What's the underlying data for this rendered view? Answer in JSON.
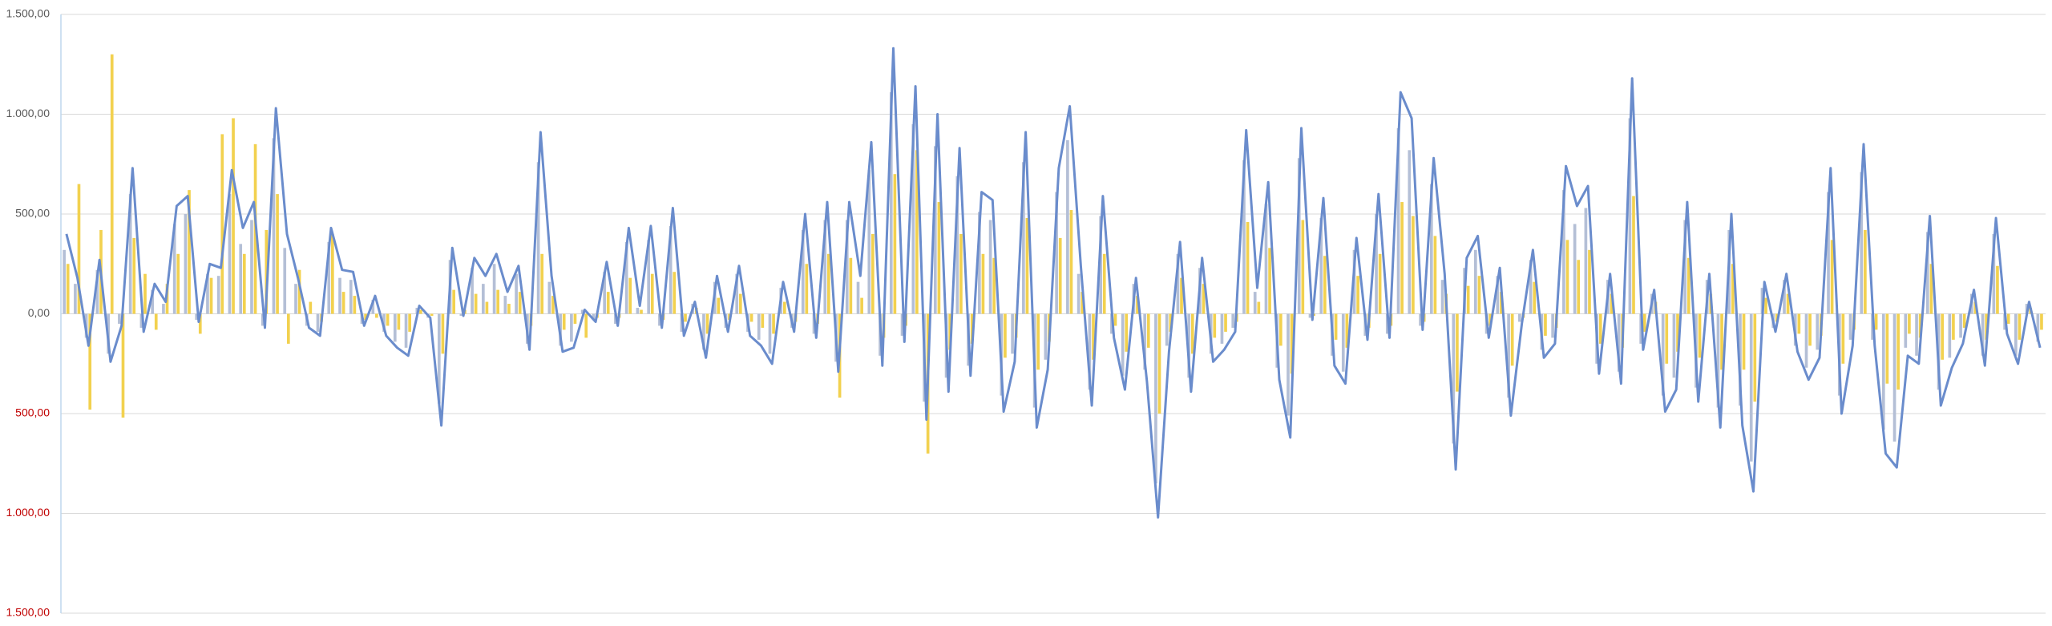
{
  "chart_data": {
    "type": "bar-line",
    "categories": [
      null,
      null,
      null,
      null,
      null,
      null,
      null,
      null,
      null,
      null,
      null,
      null,
      null,
      null,
      null,
      null,
      null,
      null,
      null,
      null,
      null,
      null,
      null,
      null,
      null,
      null,
      null,
      null,
      null,
      null,
      null,
      null,
      null,
      null,
      null,
      null,
      null,
      null,
      null,
      null,
      null,
      null,
      null,
      null,
      null,
      null,
      null,
      null,
      null,
      null,
      null,
      null,
      null,
      null,
      null,
      null,
      null,
      null,
      null,
      null,
      null,
      null,
      null,
      null,
      null,
      null,
      null,
      null,
      null,
      null,
      null,
      null,
      null,
      null,
      null,
      null,
      null,
      null,
      null,
      null,
      null,
      null,
      null,
      null,
      null,
      null,
      null,
      null,
      null,
      null,
      null,
      null,
      null,
      null,
      null,
      null,
      null,
      null,
      null,
      null,
      null,
      null,
      null,
      null,
      null,
      null,
      null,
      null,
      null,
      null,
      null,
      null,
      null,
      null,
      null,
      null,
      null,
      null,
      null,
      null,
      null,
      null,
      null,
      null,
      null,
      null,
      null,
      null,
      null,
      null,
      null,
      null,
      null,
      null,
      null,
      null,
      null,
      null,
      null,
      null,
      null,
      null,
      null,
      null,
      null,
      null,
      null,
      null,
      null,
      null,
      null,
      null,
      null,
      null,
      null,
      null,
      null,
      null,
      null,
      null,
      null,
      null,
      null,
      null,
      null,
      null,
      null,
      null,
      null,
      null,
      null,
      null,
      null,
      null,
      null,
      null,
      null,
      null,
      null,
      null
    ],
    "series": [
      {
        "kind": "bar",
        "color": "#b4bfd6",
        "values": [
          320,
          150,
          -120,
          220,
          -200,
          -50,
          600,
          -70,
          120,
          50,
          450,
          500,
          -30,
          200,
          190,
          600,
          350,
          470,
          -60,
          880,
          330,
          150,
          -60,
          -90,
          360,
          180,
          170,
          -50,
          70,
          -90,
          -140,
          -170,
          30,
          -20,
          -450,
          270,
          -10,
          230,
          150,
          250,
          90,
          200,
          -150,
          760,
          160,
          -160,
          -140,
          20,
          -30,
          210,
          -50,
          360,
          30,
          370,
          -60,
          440,
          -90,
          50,
          -180,
          160,
          -70,
          200,
          -90,
          -130,
          -200,
          130,
          -70,
          420,
          -100,
          470,
          -240,
          470,
          160,
          720,
          -210,
          1110,
          -110,
          950,
          -440,
          840,
          -320,
          690,
          -260,
          510,
          470,
          -410,
          -200,
          760,
          -470,
          -230,
          610,
          870,
          200,
          -380,
          490,
          -100,
          -310,
          150,
          -280,
          -850,
          -160,
          300,
          -320,
          230,
          -200,
          -150,
          -70,
          770,
          110,
          550,
          -270,
          -510,
          780,
          -20,
          480,
          -210,
          -290,
          320,
          -110,
          500,
          -100,
          930,
          820,
          -60,
          650,
          170,
          -650,
          230,
          320,
          -100,
          190,
          -420,
          -40,
          270,
          -180,
          -120,
          620,
          450,
          530,
          -250,
          170,
          -290,
          980,
          -150,
          100,
          -410,
          -320,
          470,
          -370,
          170,
          -470,
          420,
          -460,
          -740,
          130,
          -70,
          170,
          -160,
          -270,
          -180,
          610,
          -410,
          -130,
          710,
          -130,
          -580,
          -640,
          -170,
          -210,
          410,
          -380,
          -220,
          -120,
          100,
          -210,
          400,
          -80,
          -210,
          50,
          -140
        ]
      },
      {
        "kind": "bar",
        "color": "#f2d14f",
        "values": [
          250,
          650,
          -480,
          420,
          1300,
          -520,
          380,
          200,
          -80,
          150,
          300,
          620,
          -100,
          180,
          900,
          980,
          300,
          850,
          420,
          600,
          -150,
          220,
          60,
          -40,
          400,
          110,
          90,
          -30,
          -20,
          -60,
          -80,
          -90,
          20,
          -10,
          -200,
          120,
          20,
          100,
          60,
          120,
          50,
          110,
          -60,
          300,
          90,
          -80,
          -50,
          -120,
          -20,
          110,
          -20,
          180,
          20,
          200,
          -30,
          210,
          -40,
          30,
          -100,
          80,
          -30,
          100,
          -40,
          -70,
          -100,
          60,
          -40,
          250,
          -50,
          300,
          -420,
          280,
          80,
          400,
          -120,
          700,
          -60,
          820,
          -700,
          560,
          -180,
          400,
          -150,
          300,
          280,
          -220,
          -120,
          480,
          -280,
          -140,
          380,
          520,
          110,
          -230,
          300,
          -60,
          -190,
          90,
          -170,
          -500,
          -90,
          180,
          -200,
          150,
          -120,
          -90,
          -40,
          460,
          60,
          330,
          -160,
          -300,
          470,
          -10,
          290,
          -130,
          -170,
          190,
          -70,
          300,
          -60,
          560,
          490,
          -40,
          390,
          100,
          -390,
          140,
          190,
          -60,
          110,
          -260,
          -20,
          160,
          -110,
          -70,
          370,
          270,
          320,
          -150,
          100,
          -170,
          590,
          -90,
          60,
          -250,
          -190,
          280,
          -220,
          100,
          -280,
          250,
          -280,
          -440,
          80,
          -40,
          100,
          -100,
          -160,
          -110,
          370,
          -250,
          -80,
          420,
          -80,
          -350,
          -380,
          -100,
          -120,
          250,
          -230,
          -130,
          -70,
          60,
          -130,
          240,
          -50,
          -130,
          30,
          -80
        ]
      },
      {
        "kind": "line",
        "color": "#6a8ccc",
        "values": [
          400,
          180,
          -160,
          270,
          -240,
          -60,
          730,
          -90,
          150,
          60,
          540,
          590,
          -40,
          250,
          230,
          720,
          430,
          560,
          -70,
          1030,
          400,
          180,
          -70,
          -110,
          430,
          220,
          210,
          -60,
          90,
          -110,
          -170,
          -210,
          40,
          -20,
          -560,
          330,
          -10,
          280,
          190,
          300,
          110,
          240,
          -180,
          910,
          190,
          -190,
          -170,
          20,
          -40,
          260,
          -60,
          430,
          40,
          440,
          -70,
          530,
          -110,
          60,
          -220,
          190,
          -90,
          240,
          -110,
          -160,
          -250,
          160,
          -90,
          500,
          -120,
          560,
          -290,
          560,
          190,
          860,
          -260,
          1330,
          -140,
          1140,
          -530,
          1000,
          -390,
          830,
          -310,
          610,
          570,
          -490,
          -240,
          910,
          -570,
          -280,
          730,
          1040,
          240,
          -460,
          590,
          -120,
          -380,
          180,
          -340,
          -1020,
          -190,
          360,
          -390,
          280,
          -240,
          -180,
          -90,
          920,
          130,
          660,
          -330,
          -620,
          930,
          -30,
          580,
          -260,
          -350,
          380,
          -130,
          600,
          -120,
          1110,
          980,
          -80,
          780,
          200,
          -780,
          280,
          390,
          -120,
          230,
          -510,
          -50,
          320,
          -220,
          -150,
          740,
          540,
          640,
          -300,
          200,
          -350,
          1180,
          -180,
          120,
          -490,
          -380,
          560,
          -440,
          200,
          -570,
          500,
          -560,
          -890,
          160,
          -90,
          200,
          -190,
          -330,
          -220,
          730,
          -500,
          -160,
          850,
          -160,
          -700,
          -770,
          -210,
          -250,
          490,
          -460,
          -270,
          -150,
          120,
          -260,
          480,
          -100,
          -250,
          60,
          -170
        ]
      }
    ],
    "ylim": [
      -1500,
      1500
    ],
    "yticks": [
      {
        "value": 1500,
        "label": "1.500,00"
      },
      {
        "value": 1000,
        "label": "1.000,00"
      },
      {
        "value": 500,
        "label": "500,00"
      },
      {
        "value": 0,
        "label": "0,00"
      },
      {
        "value": -500,
        "label": "500,00"
      },
      {
        "value": -1000,
        "label": "1.000,00"
      },
      {
        "value": -1500,
        "label": "1.500,00"
      }
    ],
    "grid": true,
    "tick_color": "#595959",
    "negative_tick_color": "#c00000"
  }
}
